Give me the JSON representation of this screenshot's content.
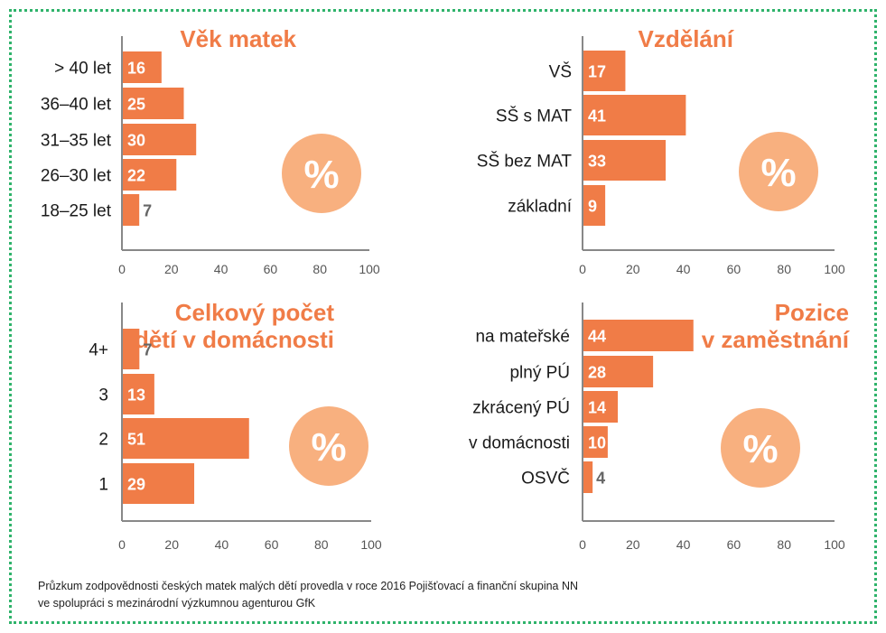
{
  "colors": {
    "bar": "#f07c47",
    "title": "#f07c47",
    "circle": "#f8b07f",
    "axis": "#888888",
    "tick_text": "#555555",
    "cat_text": "#1a1a1a",
    "border": "#2fb36b"
  },
  "chart_data": [
    {
      "id": "vek",
      "type": "bar",
      "orientation": "horizontal",
      "title_lines": [
        "Věk matek"
      ],
      "categories": [
        "> 40 let",
        "36–40 let",
        "31–35 let",
        "26–30 let",
        "18–25 let"
      ],
      "values": [
        16,
        25,
        30,
        22,
        7
      ],
      "xlim": [
        0,
        100
      ],
      "xticks": [
        "0",
        "20",
        "40",
        "60",
        "80",
        "100"
      ],
      "unit_badge": "%"
    },
    {
      "id": "vzdelani",
      "type": "bar",
      "orientation": "horizontal",
      "title_lines": [
        "Vzdělání"
      ],
      "categories": [
        "VŠ",
        "SŠ s MAT",
        "SŠ bez MAT",
        "základní"
      ],
      "values": [
        17,
        41,
        33,
        9
      ],
      "xlim": [
        0,
        100
      ],
      "xticks": [
        "0",
        "20",
        "40",
        "60",
        "80",
        "100"
      ],
      "unit_badge": "%"
    },
    {
      "id": "deti",
      "type": "bar",
      "orientation": "horizontal",
      "title_lines": [
        "Celkový počet",
        "dětí v domácnosti"
      ],
      "categories": [
        "4+",
        "3",
        "2",
        "1"
      ],
      "values": [
        7,
        13,
        51,
        29
      ],
      "xlim": [
        0,
        100
      ],
      "xticks": [
        "0",
        "20",
        "40",
        "60",
        "80",
        "100"
      ],
      "unit_badge": "%"
    },
    {
      "id": "pozice",
      "type": "bar",
      "orientation": "horizontal",
      "title_lines": [
        "Pozice",
        "v zaměstnání"
      ],
      "categories": [
        "na mateřské",
        "plný PÚ",
        "zkrácený PÚ",
        "v domácnosti",
        "OSVČ"
      ],
      "values": [
        44,
        28,
        14,
        10,
        4
      ],
      "xlim": [
        0,
        100
      ],
      "xticks": [
        "0",
        "20",
        "40",
        "60",
        "80",
        "100"
      ],
      "unit_badge": "%"
    }
  ],
  "footnote": {
    "line1": "Průzkum zodpovědnosti českých matek malých dětí provedla v roce 2016 Pojišťovací a finanční skupina NN",
    "line2": "ve spolupráci s mezinárodní výzkumnou agenturou GfK"
  }
}
